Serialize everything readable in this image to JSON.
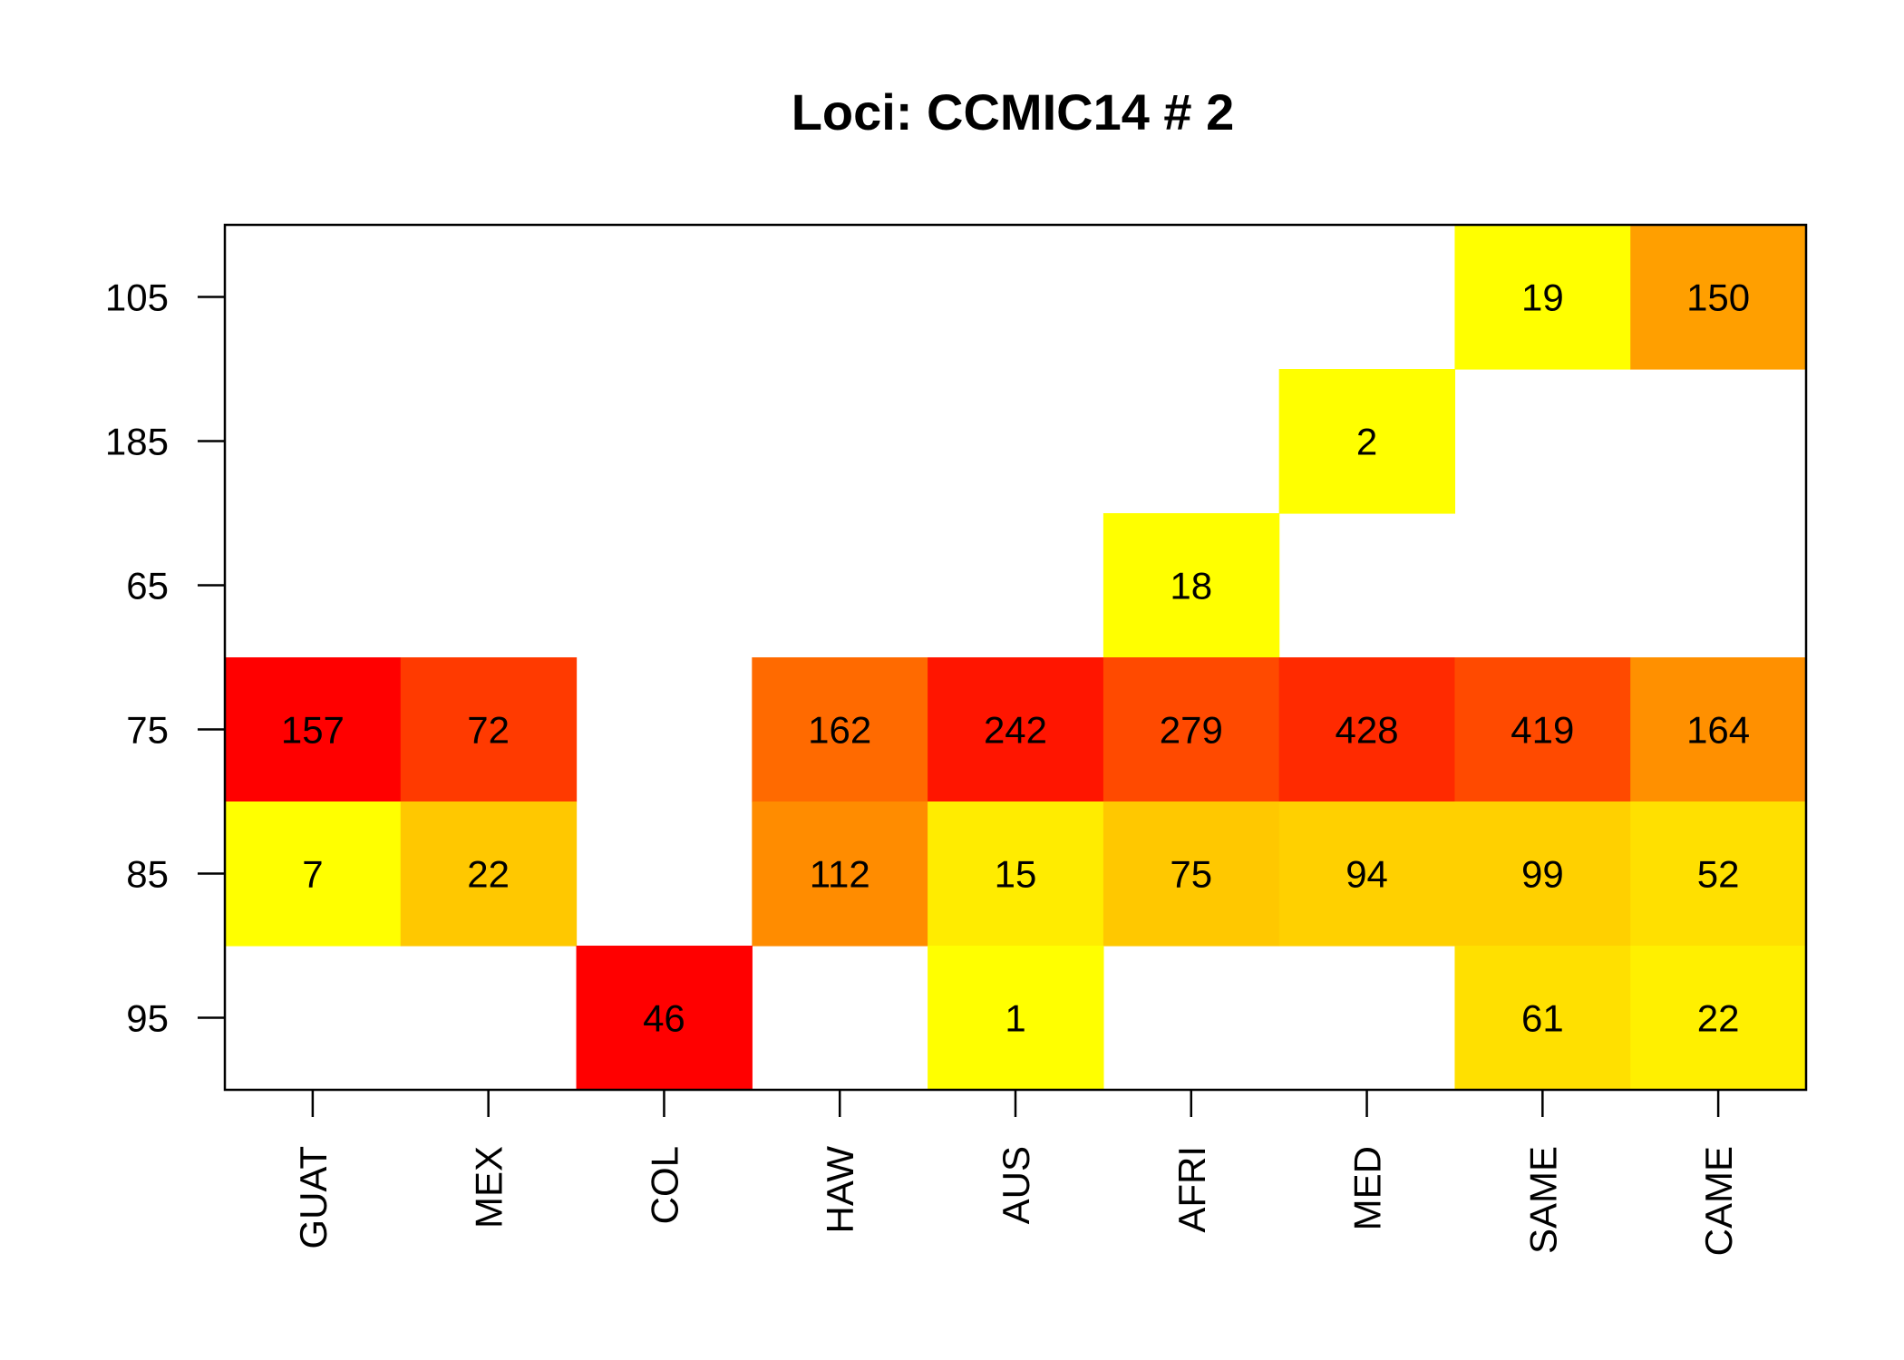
{
  "chart_data": {
    "type": "heatmap",
    "title": "Loci: CCMIC14 # 2",
    "xlabel": "",
    "ylabel": "",
    "columns": [
      "GUAT",
      "MEX",
      "COL",
      "HAW",
      "AUS",
      "AFRI",
      "MED",
      "SAME",
      "CAME"
    ],
    "rows": [
      "105",
      "185",
      "65",
      "75",
      "85",
      "95"
    ],
    "values": [
      [
        null,
        null,
        null,
        null,
        null,
        null,
        null,
        19,
        150
      ],
      [
        null,
        null,
        null,
        null,
        null,
        null,
        2,
        null,
        null
      ],
      [
        null,
        null,
        null,
        null,
        null,
        18,
        null,
        null,
        null
      ],
      [
        157,
        72,
        null,
        162,
        242,
        279,
        428,
        419,
        164
      ],
      [
        7,
        22,
        null,
        112,
        15,
        75,
        94,
        99,
        52
      ],
      [
        null,
        null,
        46,
        null,
        1,
        null,
        null,
        61,
        22
      ]
    ],
    "colors": [
      [
        null,
        null,
        null,
        null,
        null,
        null,
        null,
        "#ffff00",
        "#ff9f00"
      ],
      [
        null,
        null,
        null,
        null,
        null,
        null,
        "#ffff00",
        null,
        null
      ],
      [
        null,
        null,
        null,
        null,
        null,
        "#ffff00",
        null,
        null,
        null
      ],
      [
        "#ff0000",
        "#ff3a00",
        null,
        "#ff6a00",
        "#ff1500",
        "#ff4a00",
        "#ff2a00",
        "#ff4a00",
        "#ff9000"
      ],
      [
        "#ffff00",
        "#ffc800",
        null,
        "#ff8c00",
        "#ffec00",
        "#ffc800",
        "#ffd000",
        "#ffd000",
        "#ffe000"
      ],
      [
        null,
        null,
        "#ff0000",
        null,
        "#ffff00",
        null,
        null,
        "#ffe000",
        "#fff000"
      ]
    ],
    "grid": false,
    "legend": "none"
  }
}
